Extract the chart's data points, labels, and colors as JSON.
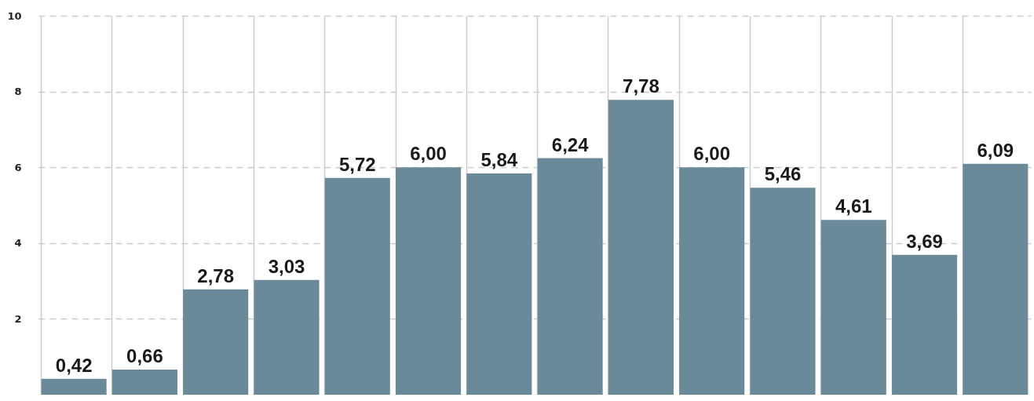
{
  "chart_data": {
    "type": "bar",
    "categories": [
      null,
      null,
      null,
      null,
      null,
      null,
      null,
      null,
      null,
      null,
      null,
      null,
      null,
      null
    ],
    "values": [
      0.42,
      0.66,
      2.78,
      3.03,
      5.72,
      6.0,
      5.84,
      6.24,
      7.78,
      6.0,
      5.46,
      4.61,
      3.69,
      6.09
    ],
    "value_labels": [
      "0,42",
      "0,66",
      "2,78",
      "3,03",
      "5,72",
      "6,00",
      "5,84",
      "6,24",
      "7,78",
      "6,00",
      "5,46",
      "4,61",
      "3,69",
      "6,09"
    ],
    "color": "#6b8a99",
    "ylim": [
      0,
      10
    ],
    "yticks": [
      2,
      4,
      6,
      8,
      10
    ],
    "grid": true
  }
}
